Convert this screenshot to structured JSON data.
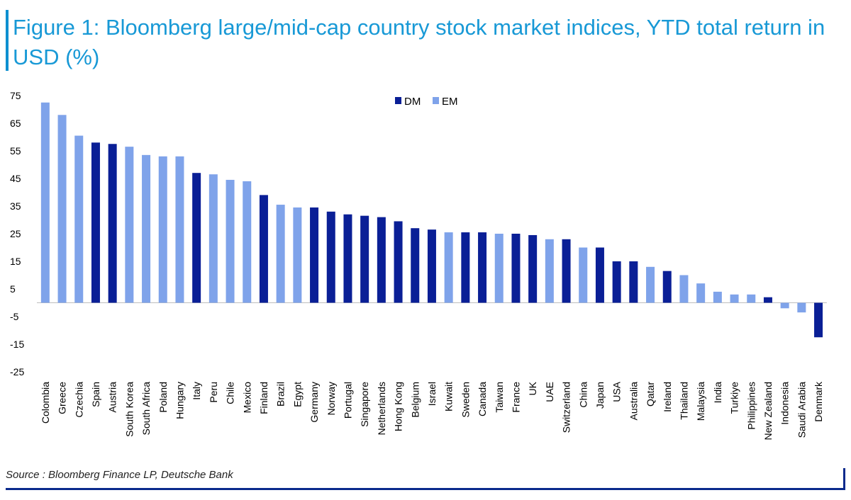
{
  "title": "Figure 1: Bloomberg large/mid-cap country stock market indices, YTD total return in USD (%)",
  "source": "Source : Bloomberg Finance LP, Deutsche Bank",
  "colors": {
    "DM": "#0a1f96",
    "EM": "#7fa3ea",
    "title": "#1899d6",
    "rule": "#0a2a8c"
  },
  "chart_data": {
    "type": "bar",
    "title": "Bloomberg large/mid-cap country stock market indices, YTD total return in USD (%)",
    "xlabel": "",
    "ylabel": "",
    "ylim": [
      -25,
      75
    ],
    "yticks": [
      "75",
      "65",
      "55",
      "45",
      "35",
      "25",
      "15",
      "5",
      "-5",
      "-15",
      "-25"
    ],
    "legend": [
      {
        "key": "DM",
        "label": "DM"
      },
      {
        "key": "EM",
        "label": "EM"
      }
    ],
    "legend_position": "top-center",
    "categories": [
      "Colombia",
      "Greece",
      "Czechia",
      "Spain",
      "Austria",
      "South Korea",
      "South Africa",
      "Poland",
      "Hungary",
      "Italy",
      "Peru",
      "Chile",
      "Mexico",
      "Finland",
      "Brazil",
      "Egypt",
      "Germany",
      "Norway",
      "Portugal",
      "Singapore",
      "Netherlands",
      "Hong Kong",
      "Belgium",
      "Israel",
      "Kuwait",
      "Sweden",
      "Canada",
      "Taiwan",
      "France",
      "UK",
      "UAE",
      "Switzerland",
      "China",
      "Japan",
      "USA",
      "Australia",
      "Qatar",
      "Ireland",
      "Thailand",
      "Malaysia",
      "India",
      "Turkiye",
      "Philippines",
      "New Zealand",
      "Indonesia",
      "Saudi Arabia",
      "Denmark"
    ],
    "values": [
      72.5,
      68,
      60.5,
      58,
      57.5,
      56.5,
      53.5,
      53,
      53,
      47,
      46.5,
      44.5,
      44,
      39,
      35.5,
      34.5,
      34.5,
      33,
      32,
      31.5,
      31,
      29.5,
      27,
      26.5,
      25.5,
      25.5,
      25.5,
      25,
      25,
      24.5,
      23,
      23,
      20,
      20,
      15,
      15,
      13,
      11.5,
      10,
      7,
      4,
      3,
      3,
      2,
      -2,
      -3.5,
      -12.5
    ],
    "groups": [
      "EM",
      "EM",
      "EM",
      "DM",
      "DM",
      "EM",
      "EM",
      "EM",
      "EM",
      "DM",
      "EM",
      "EM",
      "EM",
      "DM",
      "EM",
      "EM",
      "DM",
      "DM",
      "DM",
      "DM",
      "DM",
      "DM",
      "DM",
      "DM",
      "EM",
      "DM",
      "DM",
      "EM",
      "DM",
      "DM",
      "EM",
      "DM",
      "EM",
      "DM",
      "DM",
      "DM",
      "EM",
      "DM",
      "EM",
      "EM",
      "EM",
      "EM",
      "EM",
      "DM",
      "EM",
      "EM",
      "DM"
    ]
  }
}
